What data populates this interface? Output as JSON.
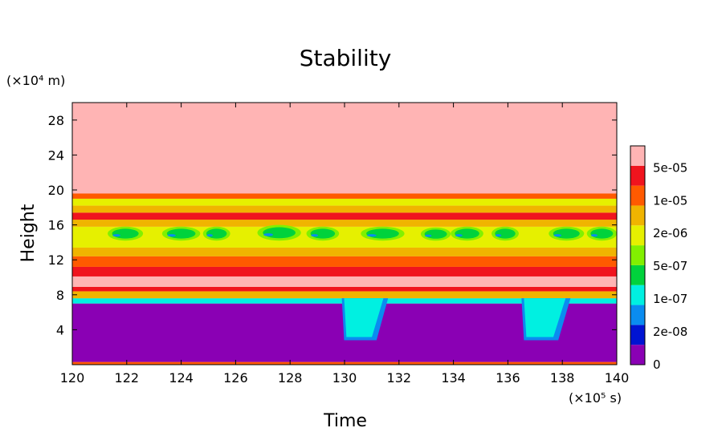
{
  "chart_data": {
    "type": "heatmap",
    "title": "Stability",
    "xlabel": "Time",
    "ylabel": "Height",
    "x_unit": "(×10⁵ s)",
    "y_unit": "(×10⁴ m)",
    "xlim": [
      120,
      140
    ],
    "ylim": [
      0,
      30
    ],
    "x_ticks": [
      "120",
      "122",
      "124",
      "126",
      "128",
      "130",
      "132",
      "134",
      "136",
      "138",
      "140"
    ],
    "y_ticks": [
      "4",
      "8",
      "12",
      "16",
      "20",
      "24",
      "28"
    ],
    "colorbar": {
      "labels": [
        "0",
        "2e-08",
        "1e-07",
        "5e-07",
        "2e-06",
        "1e-05",
        "5e-05"
      ],
      "colors": [
        "#8a00b4",
        "#0014d2",
        "#0a8cf0",
        "#00f0e1",
        "#00d23c",
        "#82f000",
        "#e6f000",
        "#f0b400",
        "#ff5a00",
        "#f0141e",
        "#ffb4b4"
      ]
    },
    "bands": [
      {
        "y0": 0.3,
        "y1": 7.0,
        "level": 0
      },
      {
        "y0": 7.0,
        "y1": 7.6,
        "level": 3
      },
      {
        "y0": 7.6,
        "y1": 8.4,
        "level": 7
      },
      {
        "y0": 8.4,
        "y1": 8.9,
        "level": 9
      },
      {
        "y0": 8.9,
        "y1": 10.1,
        "level": 10
      },
      {
        "y0": 10.1,
        "y1": 11.2,
        "level": 9
      },
      {
        "y0": 11.2,
        "y1": 12.4,
        "level": 8
      },
      {
        "y0": 12.4,
        "y1": 13.4,
        "level": 7
      },
      {
        "y0": 13.4,
        "y1": 15.8,
        "level": 6
      },
      {
        "y0": 15.8,
        "y1": 16.6,
        "level": 7
      },
      {
        "y0": 16.6,
        "y1": 17.4,
        "level": 9
      },
      {
        "y0": 17.4,
        "y1": 18.2,
        "level": 7
      },
      {
        "y0": 18.2,
        "y1": 19.0,
        "level": 6
      },
      {
        "y0": 19.0,
        "y1": 19.6,
        "level": 8
      },
      {
        "y0": 19.6,
        "y1": 30.0,
        "level": 10
      }
    ],
    "events": [
      {
        "x0": 129.9,
        "x1": 131.6,
        "y_top": 7.6,
        "y_bottom": 2.8
      },
      {
        "x0": 136.5,
        "x1": 138.3,
        "y_top": 7.6,
        "y_bottom": 2.8
      }
    ],
    "cells": [
      {
        "x": 121.3,
        "y": 14.2,
        "w": 1.3,
        "h": 1.6
      },
      {
        "x": 123.3,
        "y": 14.2,
        "w": 1.4,
        "h": 1.6
      },
      {
        "x": 124.8,
        "y": 14.2,
        "w": 1.0,
        "h": 1.6
      },
      {
        "x": 126.8,
        "y": 14.2,
        "w": 1.6,
        "h": 1.8
      },
      {
        "x": 128.6,
        "y": 14.2,
        "w": 1.2,
        "h": 1.6
      },
      {
        "x": 130.6,
        "y": 14.2,
        "w": 1.6,
        "h": 1.6
      },
      {
        "x": 132.8,
        "y": 14.2,
        "w": 1.1,
        "h": 1.5
      },
      {
        "x": 133.9,
        "y": 14.2,
        "w": 1.2,
        "h": 1.6
      },
      {
        "x": 135.4,
        "y": 14.2,
        "w": 1.0,
        "h": 1.6
      },
      {
        "x": 137.5,
        "y": 14.2,
        "w": 1.3,
        "h": 1.6
      },
      {
        "x": 138.9,
        "y": 14.2,
        "w": 1.1,
        "h": 1.6
      }
    ]
  }
}
